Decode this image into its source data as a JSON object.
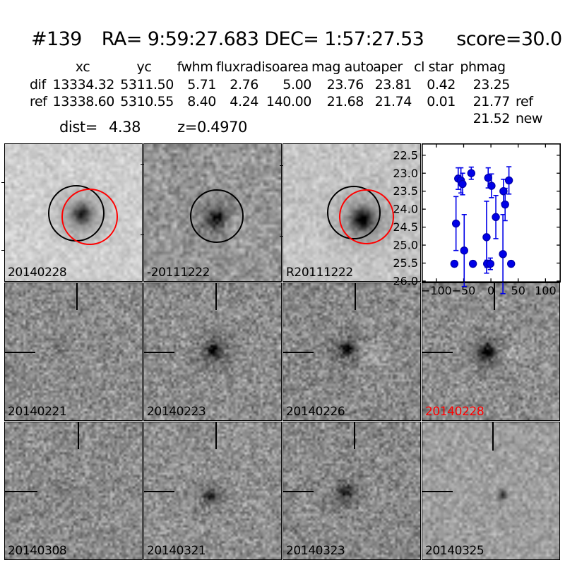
{
  "header": {
    "id": "#139",
    "ra_label": "RA=",
    "ra": "9:59:27.683",
    "dec_label": "DEC=",
    "dec": "1:57:27.53",
    "score_label": "score=",
    "score": "30.0"
  },
  "measurements": {
    "columns": [
      "xc",
      "yc",
      "fwhm",
      "fluxrad",
      "isoarea",
      "mag auto",
      "aper",
      "cl star",
      "phmag"
    ],
    "rows": [
      {
        "label": "dif",
        "cells": [
          "13334.32",
          "5311.50",
          "5.71",
          "2.76",
          "5.00",
          "23.76",
          "23.81",
          "0.42",
          "23.25"
        ],
        "suffix": ""
      },
      {
        "label": "ref",
        "cells": [
          "13338.60",
          "5310.55",
          "8.40",
          "4.24",
          "140.00",
          "21.68",
          "21.74",
          "0.01",
          "21.77"
        ],
        "suffix": "ref"
      }
    ],
    "extra_phmag": {
      "value": "21.52",
      "suffix": "new"
    },
    "dist_label": "dist=",
    "dist": "4.38",
    "z_label": "z=",
    "z": "0.4970"
  },
  "panels": [
    {
      "label": "20140228",
      "color": "#000000",
      "markers": "black+red-circle"
    },
    {
      "label": "-20111222",
      "color": "#000000",
      "markers": "black-circle"
    },
    {
      "label": "R20111222",
      "color": "#000000",
      "markers": "black+red-circle"
    },
    {
      "label": "20140221",
      "color": "#000000",
      "markers": "crosshair"
    },
    {
      "label": "20140223",
      "color": "#000000",
      "markers": "crosshair"
    },
    {
      "label": "20140226",
      "color": "#000000",
      "markers": "crosshair"
    },
    {
      "label": "20140228",
      "color": "#ff0000",
      "markers": "crosshair"
    },
    {
      "label": "20140308",
      "color": "#000000",
      "markers": "crosshair"
    },
    {
      "label": "20140321",
      "color": "#000000",
      "markers": "crosshair"
    },
    {
      "label": "20140323",
      "color": "#000000",
      "markers": "crosshair"
    },
    {
      "label": "20140325",
      "color": "#000000",
      "markers": "crosshair"
    }
  ],
  "colors": {
    "aperture_black": "#000000",
    "aperture_red": "#ff0000",
    "marker_blue": "#0000e8"
  },
  "chart_data": {
    "type": "scatter",
    "title": "",
    "xlabel": "",
    "ylabel": "",
    "xlim": [
      -127,
      128
    ],
    "ylim": [
      26.04,
      22.17
    ],
    "y_inverted": true,
    "grid": false,
    "legend": null,
    "xticks": [
      -100,
      -50,
      0,
      50,
      100
    ],
    "xtick_labels": [
      "−100",
      "−50",
      "0",
      "50",
      "100"
    ],
    "yticks": [
      22.5,
      23.0,
      23.5,
      24.0,
      24.5,
      25.0,
      25.5,
      26.0
    ],
    "ytick_labels": [
      "22.5",
      "23.0",
      "23.5",
      "24.0",
      "24.5",
      "25.0",
      "25.5",
      "26.0"
    ],
    "series": [
      {
        "name": "photometry",
        "marker": "circle",
        "color": "#0000e8",
        "points": [
          {
            "x": -60,
            "mag": 23.15,
            "err": 0.3
          },
          {
            "x": -55,
            "mag": 23.2,
            "err": 0.35
          },
          {
            "x": -52,
            "mag": 23.3,
            "err": 0.3
          },
          {
            "x": -36,
            "mag": 23.0,
            "err": 0.17
          },
          {
            "x": -64,
            "mag": 24.4,
            "err": 0.75
          },
          {
            "x": -67,
            "mag": 25.52,
            "err": 0.08
          },
          {
            "x": -49,
            "mag": 25.15,
            "err": 1.0
          },
          {
            "x": -33,
            "mag": 25.52,
            "err": 0.08
          },
          {
            "x": -5,
            "mag": 23.13,
            "err": 0.28
          },
          {
            "x": 1,
            "mag": 23.35,
            "err": 0.33
          },
          {
            "x": -8,
            "mag": 24.78,
            "err": 1.0
          },
          {
            "x": -7,
            "mag": 25.52,
            "err": 0.1
          },
          {
            "x": -1,
            "mag": 25.52,
            "err": 0.16
          },
          {
            "x": 9,
            "mag": 24.22,
            "err": 0.6
          },
          {
            "x": 23,
            "mag": 23.5,
            "err": 0.33
          },
          {
            "x": 33,
            "mag": 23.2,
            "err": 0.38
          },
          {
            "x": 26,
            "mag": 23.87,
            "err": 0.45
          },
          {
            "x": 22,
            "mag": 25.25,
            "err": 1.1
          },
          {
            "x": 37,
            "mag": 25.52,
            "err": 0.08
          }
        ]
      }
    ]
  }
}
